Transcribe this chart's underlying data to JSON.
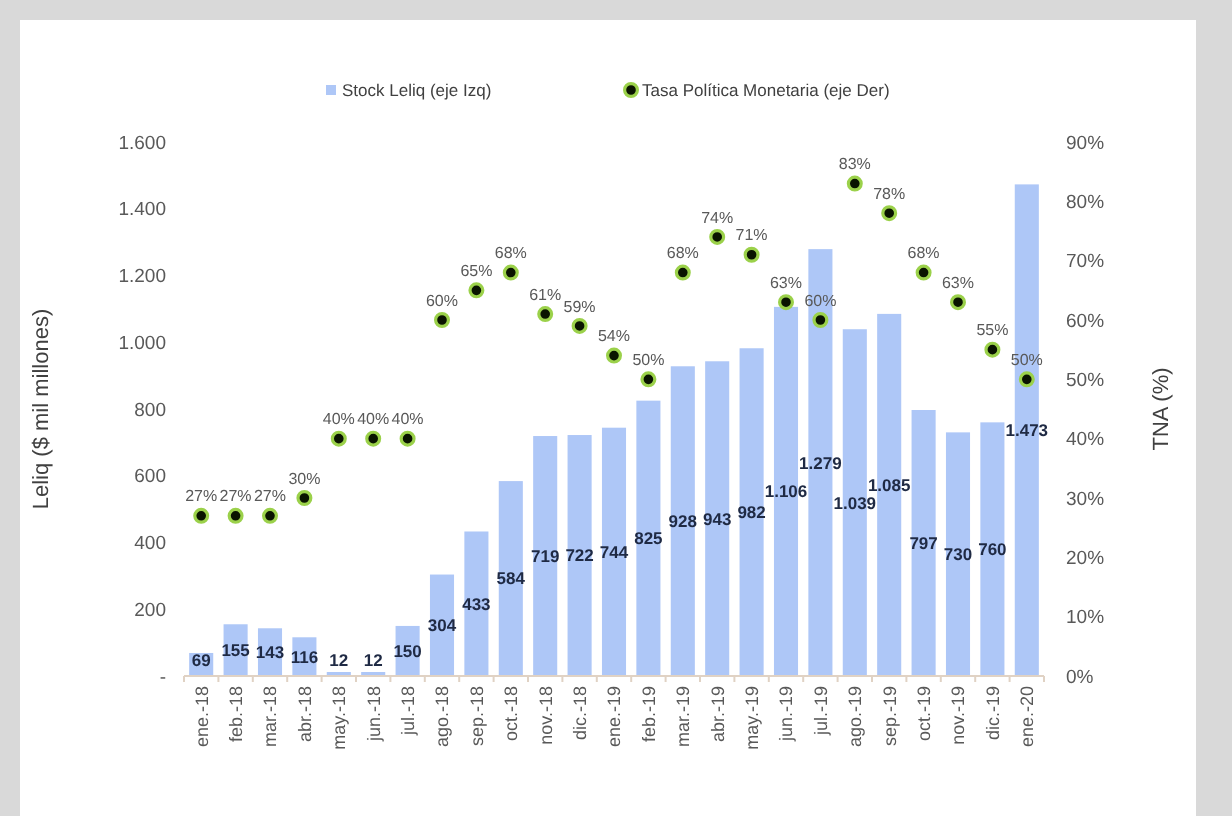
{
  "chart_data": {
    "type": "bar",
    "ylabel": "Leliq ($ mil millones)",
    "y2label": "TNA (%)",
    "categories": [
      "ene.-18",
      "feb.-18",
      "mar.-18",
      "abr.-18",
      "may.-18",
      "jun.-18",
      "jul.-18",
      "ago.-18",
      "sep.-18",
      "oct.-18",
      "nov.-18",
      "dic.-18",
      "ene.-19",
      "feb.-19",
      "mar.-19",
      "abr.-19",
      "may.-19",
      "jun.-19",
      "jul.-19",
      "ago.-19",
      "sep.-19",
      "oct.-19",
      "nov.-19",
      "dic.-19",
      "ene.-20"
    ],
    "series": [
      {
        "name": "Stock Leliq (eje Izq)",
        "color": "#aec7f7",
        "values": [
          69,
          155,
          143,
          116,
          12,
          12,
          150,
          304,
          433,
          584,
          719,
          722,
          744,
          825,
          928,
          943,
          982,
          1106,
          1279,
          1039,
          1085,
          797,
          730,
          760,
          1473
        ],
        "value_labels": [
          "69",
          "155",
          "143",
          "116",
          "12",
          "12",
          "150",
          "304",
          "433",
          "584",
          "719",
          "722",
          "744",
          "825",
          "928",
          "943",
          "982",
          "1.106",
          "1.279",
          "1.039",
          "1.085",
          "797",
          "730",
          "760",
          "1.473"
        ]
      },
      {
        "name": "Tasa Política Monetaria (eje Der)",
        "type": "scatter",
        "axis": "y2",
        "color": "#0a1400",
        "values": [
          27,
          27,
          27,
          30,
          40,
          40,
          40,
          60,
          65,
          68,
          61,
          59,
          54,
          50,
          68,
          74,
          71,
          63,
          60,
          83,
          78,
          68,
          63,
          55,
          50
        ],
        "value_labels": [
          "27%",
          "27%",
          "27%",
          "30%",
          "40%",
          "40%",
          "40%",
          "60%",
          "65%",
          "68%",
          "61%",
          "59%",
          "54%",
          "50%",
          "68%",
          "74%",
          "71%",
          "63%",
          "60%",
          "83%",
          "78%",
          "68%",
          "63%",
          "55%",
          "50%"
        ]
      }
    ],
    "ylim": [
      0,
      1600
    ],
    "yticks": [
      {
        "value": 0,
        "label": "-"
      },
      200,
      400,
      600,
      800,
      {
        "value": 1000,
        "label": "1.000"
      },
      {
        "value": 1200,
        "label": "1.200"
      },
      {
        "value": 1400,
        "label": "1.400"
      },
      {
        "value": 1600,
        "label": "1.600"
      }
    ],
    "y2lim": [
      0,
      90
    ],
    "y2ticks": [
      {
        "value": 0,
        "label": "0%"
      },
      {
        "value": 10,
        "label": "10%"
      },
      {
        "value": 20,
        "label": "20%"
      },
      {
        "value": 30,
        "label": "30%"
      },
      {
        "value": 40,
        "label": "40%"
      },
      {
        "value": 50,
        "label": "50%"
      },
      {
        "value": 60,
        "label": "60%"
      },
      {
        "value": 70,
        "label": "70%"
      },
      {
        "value": 80,
        "label": "80%"
      },
      {
        "value": 90,
        "label": "90%"
      }
    ],
    "legend": "top",
    "grid": false,
    "marker": "circle"
  }
}
